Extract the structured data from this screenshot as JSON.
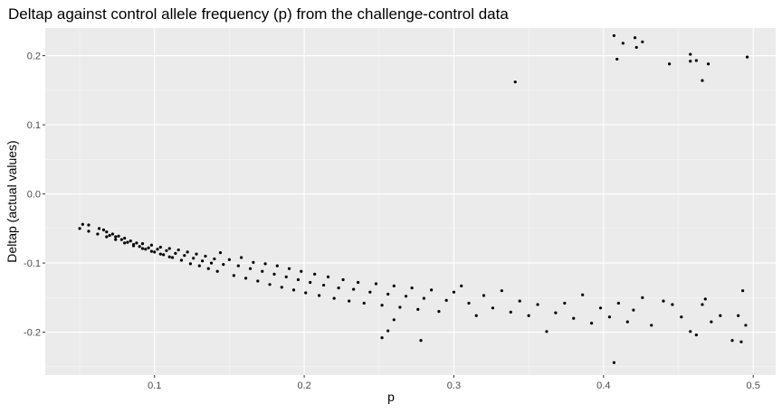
{
  "chart_data": {
    "type": "scatter",
    "title": "Deltap against control allele frequency (p) from the challenge-control data",
    "xlabel": "p",
    "ylabel": "Deltap (actual values)",
    "xlim": [
      0.027,
      0.515
    ],
    "ylim": [
      -0.262,
      0.24
    ],
    "x_ticks": [
      0.1,
      0.2,
      0.3,
      0.4,
      0.5
    ],
    "x_tick_labels": [
      "0.1",
      "0.2",
      "0.3",
      "0.4",
      "0.5"
    ],
    "y_ticks": [
      0.2,
      0.1,
      0.0,
      -0.1,
      -0.2
    ],
    "y_tick_labels": [
      "0.2",
      "0.1",
      "0.0",
      "-0.1",
      "-0.2"
    ],
    "grid": true,
    "panel_color": "#ebebeb",
    "point_color": "#000000",
    "series": [
      {
        "points": [
          [
            0.05,
            -0.05
          ],
          [
            0.056,
            -0.054
          ],
          [
            0.062,
            -0.058
          ],
          [
            0.068,
            -0.062
          ],
          [
            0.074,
            -0.066
          ],
          [
            0.08,
            -0.071
          ],
          [
            0.086,
            -0.075
          ],
          [
            0.092,
            -0.079
          ],
          [
            0.098,
            -0.083
          ],
          [
            0.104,
            -0.087
          ],
          [
            0.11,
            -0.091
          ],
          [
            0.052,
            -0.044
          ],
          [
            0.056,
            -0.045
          ],
          [
            0.063,
            -0.05
          ],
          [
            0.066,
            -0.052
          ],
          [
            0.068,
            -0.055
          ],
          [
            0.07,
            -0.06
          ],
          [
            0.072,
            -0.058
          ],
          [
            0.074,
            -0.062
          ],
          [
            0.076,
            -0.061
          ],
          [
            0.078,
            -0.066
          ],
          [
            0.08,
            -0.064
          ],
          [
            0.082,
            -0.07
          ],
          [
            0.084,
            -0.068
          ],
          [
            0.086,
            -0.073
          ],
          [
            0.088,
            -0.071
          ],
          [
            0.09,
            -0.076
          ],
          [
            0.092,
            -0.072
          ],
          [
            0.094,
            -0.08
          ],
          [
            0.096,
            -0.078
          ],
          [
            0.098,
            -0.074
          ],
          [
            0.1,
            -0.084
          ],
          [
            0.102,
            -0.08
          ],
          [
            0.104,
            -0.077
          ],
          [
            0.106,
            -0.088
          ],
          [
            0.108,
            -0.082
          ],
          [
            0.11,
            -0.079
          ],
          [
            0.112,
            -0.092
          ],
          [
            0.114,
            -0.086
          ],
          [
            0.116,
            -0.081
          ],
          [
            0.118,
            -0.096
          ],
          [
            0.12,
            -0.089
          ],
          [
            0.122,
            -0.084
          ],
          [
            0.124,
            -0.101
          ],
          [
            0.126,
            -0.093
          ],
          [
            0.128,
            -0.087
          ],
          [
            0.13,
            -0.104
          ],
          [
            0.132,
            -0.097
          ],
          [
            0.134,
            -0.09
          ],
          [
            0.136,
            -0.108
          ],
          [
            0.138,
            -0.1
          ],
          [
            0.14,
            -0.094
          ],
          [
            0.142,
            -0.112
          ],
          [
            0.144,
            -0.085
          ],
          [
            0.146,
            -0.102
          ],
          [
            0.15,
            -0.095
          ],
          [
            0.153,
            -0.118
          ],
          [
            0.156,
            -0.104
          ],
          [
            0.158,
            -0.092
          ],
          [
            0.161,
            -0.122
          ],
          [
            0.164,
            -0.108
          ],
          [
            0.166,
            -0.099
          ],
          [
            0.169,
            -0.126
          ],
          [
            0.172,
            -0.112
          ],
          [
            0.174,
            -0.101
          ],
          [
            0.177,
            -0.131
          ],
          [
            0.18,
            -0.116
          ],
          [
            0.182,
            -0.104
          ],
          [
            0.185,
            -0.135
          ],
          [
            0.188,
            -0.12
          ],
          [
            0.19,
            -0.108
          ],
          [
            0.193,
            -0.139
          ],
          [
            0.196,
            -0.124
          ],
          [
            0.198,
            -0.112
          ],
          [
            0.201,
            -0.143
          ],
          [
            0.204,
            -0.128
          ],
          [
            0.207,
            -0.116
          ],
          [
            0.21,
            -0.147
          ],
          [
            0.213,
            -0.132
          ],
          [
            0.216,
            -0.12
          ],
          [
            0.22,
            -0.151
          ],
          [
            0.223,
            -0.136
          ],
          [
            0.226,
            -0.124
          ],
          [
            0.23,
            -0.155
          ],
          [
            0.233,
            -0.138
          ],
          [
            0.236,
            -0.128
          ],
          [
            0.24,
            -0.158
          ],
          [
            0.244,
            -0.142
          ],
          [
            0.248,
            -0.13
          ],
          [
            0.252,
            -0.161
          ],
          [
            0.256,
            -0.145
          ],
          [
            0.26,
            -0.133
          ],
          [
            0.264,
            -0.164
          ],
          [
            0.268,
            -0.148
          ],
          [
            0.272,
            -0.136
          ],
          [
            0.276,
            -0.167
          ],
          [
            0.28,
            -0.151
          ],
          [
            0.285,
            -0.139
          ],
          [
            0.29,
            -0.17
          ],
          [
            0.295,
            -0.154
          ],
          [
            0.3,
            -0.142
          ],
          [
            0.252,
            -0.208
          ],
          [
            0.256,
            -0.198
          ],
          [
            0.26,
            -0.182
          ],
          [
            0.278,
            -0.212
          ],
          [
            0.305,
            -0.133
          ],
          [
            0.31,
            -0.158
          ],
          [
            0.315,
            -0.176
          ],
          [
            0.32,
            -0.147
          ],
          [
            0.326,
            -0.165
          ],
          [
            0.332,
            -0.14
          ],
          [
            0.338,
            -0.171
          ],
          [
            0.344,
            -0.155
          ],
          [
            0.35,
            -0.176
          ],
          [
            0.356,
            -0.16
          ],
          [
            0.362,
            -0.199
          ],
          [
            0.368,
            -0.172
          ],
          [
            0.374,
            -0.158
          ],
          [
            0.38,
            -0.18
          ],
          [
            0.386,
            -0.146
          ],
          [
            0.392,
            -0.187
          ],
          [
            0.398,
            -0.165
          ],
          [
            0.404,
            -0.178
          ],
          [
            0.407,
            -0.244
          ],
          [
            0.41,
            -0.158
          ],
          [
            0.416,
            -0.185
          ],
          [
            0.42,
            -0.168
          ],
          [
            0.426,
            -0.15
          ],
          [
            0.432,
            -0.19
          ],
          [
            0.44,
            -0.155
          ],
          [
            0.446,
            -0.16
          ],
          [
            0.452,
            -0.178
          ],
          [
            0.458,
            -0.199
          ],
          [
            0.462,
            -0.204
          ],
          [
            0.466,
            -0.16
          ],
          [
            0.468,
            -0.152
          ],
          [
            0.472,
            -0.185
          ],
          [
            0.478,
            -0.176
          ],
          [
            0.486,
            -0.212
          ],
          [
            0.49,
            -0.176
          ],
          [
            0.492,
            -0.214
          ],
          [
            0.493,
            -0.14
          ],
          [
            0.495,
            -0.19
          ],
          [
            0.341,
            0.162
          ],
          [
            0.407,
            0.229
          ],
          [
            0.409,
            0.195
          ],
          [
            0.413,
            0.218
          ],
          [
            0.421,
            0.226
          ],
          [
            0.422,
            0.212
          ],
          [
            0.426,
            0.22
          ],
          [
            0.444,
            0.188
          ],
          [
            0.458,
            0.202
          ],
          [
            0.458,
            0.192
          ],
          [
            0.462,
            0.193
          ],
          [
            0.466,
            0.164
          ],
          [
            0.47,
            0.188
          ],
          [
            0.496,
            0.198
          ]
        ]
      }
    ]
  }
}
